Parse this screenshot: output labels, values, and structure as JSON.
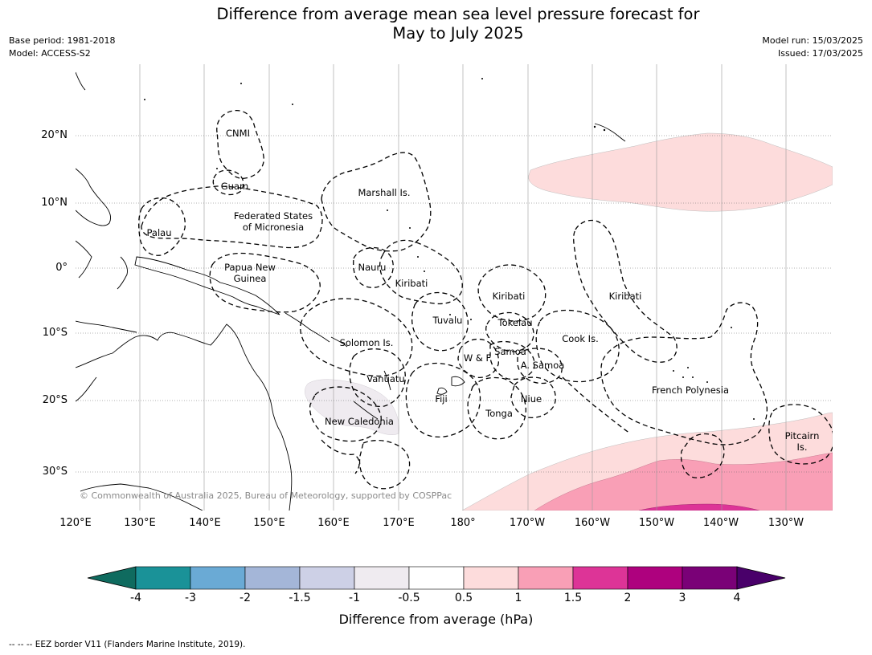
{
  "title_line1": "Difference from average mean sea level pressure forecast for",
  "title_line2": "May to July 2025",
  "base_period": "Base period: 1981-2018",
  "model": "Model: ACCESS-S2",
  "model_run": "Model run: 15/03/2025",
  "issued": "Issued: 17/03/2025",
  "lat_labels": [
    "20°N",
    "10°N",
    "0°",
    "10°S",
    "20°S",
    "30°S"
  ],
  "lon_labels": [
    "120°E",
    "130°E",
    "140°E",
    "150°E",
    "160°E",
    "170°E",
    "180°",
    "170°W",
    "160°W",
    "150°W",
    "140°W",
    "130°W"
  ],
  "regions": {
    "cnmi": "CNMI",
    "guam": "Guam",
    "marshall": "Marshall Is.",
    "fsm1": "Federated States",
    "fsm2": "of Micronesia",
    "palau": "Palau",
    "png1": "Papua New",
    "png2": "Guinea",
    "nauru": "Nauru",
    "kiribati_w": "Kiribati",
    "kiribati_c": "Kiribati",
    "kiribati_e": "Kiribati",
    "tuvalu": "Tuvalu",
    "tokelau": "Tokelau",
    "solomon": "Solomon Is.",
    "wf": "W & F",
    "samoa": "Samoa",
    "asamoa": "A. Samoa",
    "cook": "Cook Is.",
    "vanuatu": "Vanuatu",
    "fiji": "Fiji",
    "niue": "Niue",
    "tonga": "Tonga",
    "fp": "French Polynesia",
    "newcal": "New Caledonia",
    "pitcairn1": "Pitcairn",
    "pitcairn2": "Is."
  },
  "copyright": "© Commonwealth of Australia 2025, Bureau of Meteorology, supported by COSPPac",
  "colorbar": {
    "ticks": [
      "-4",
      "-3",
      "-2",
      "-1.5",
      "-1",
      "-0.5",
      "0.5",
      "1",
      "1.5",
      "2",
      "3",
      "4"
    ],
    "colors": [
      "#0f6b5f",
      "#1a9298",
      "#6aaad5",
      "#a4b6d8",
      "#cdd0e6",
      "#efebf0",
      "#ffffff",
      "#fddcdc",
      "#f99fb6",
      "#dd3497",
      "#ae017e",
      "#7a0177",
      "#49006a"
    ],
    "label": "Difference from average (hPa)"
  },
  "footer": "--  --  -- EEZ border V11 (Flanders Marine Institute, 2019)."
}
